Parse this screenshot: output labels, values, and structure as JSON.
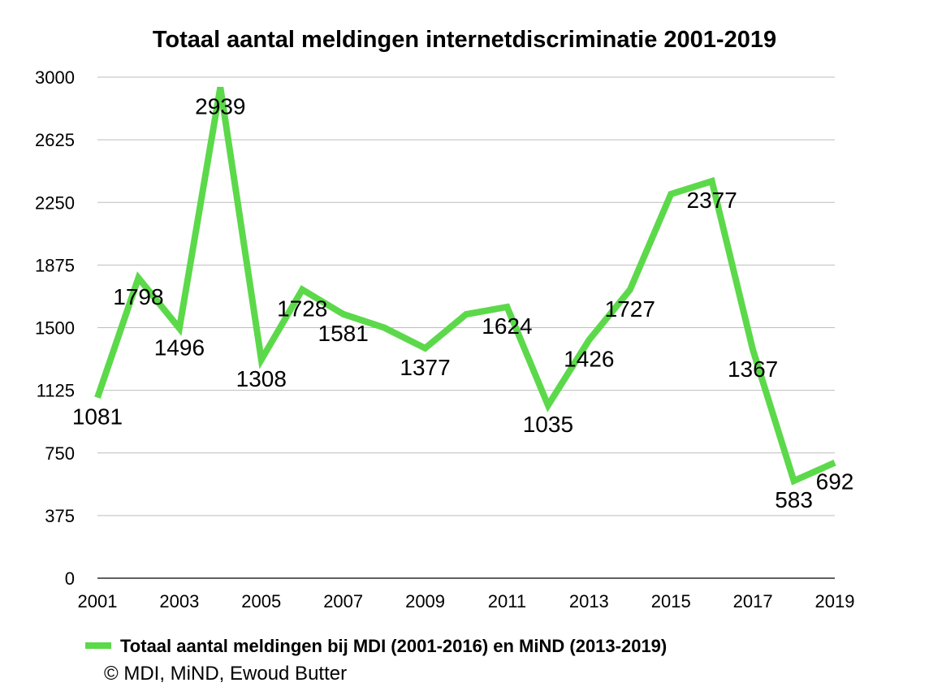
{
  "chart_data": {
    "type": "line",
    "title": "Totaal aantal meldingen internetdiscriminatie 2001-2019",
    "xlabel": "",
    "ylabel": "",
    "x": [
      2001,
      2002,
      2003,
      2004,
      2005,
      2006,
      2007,
      2008,
      2009,
      2010,
      2011,
      2012,
      2013,
      2014,
      2015,
      2016,
      2017,
      2018,
      2019
    ],
    "x_tick_labels": [
      "2001",
      "2003",
      "2005",
      "2007",
      "2009",
      "2011",
      "2013",
      "2015",
      "2017",
      "2019"
    ],
    "ylim": [
      0,
      3000
    ],
    "y_ticks": [
      0,
      375,
      750,
      1125,
      1500,
      1875,
      2250,
      2625,
      3000
    ],
    "grid": true,
    "legend_position": "bottom",
    "series": [
      {
        "name": "Totaal aantal meldingen bij MDI (2001-2016) en MiND (2013-2019)",
        "color": "#5cd94a",
        "values": [
          1081,
          1798,
          1496,
          2939,
          1308,
          1728,
          1581,
          1500,
          1377,
          1580,
          1624,
          1035,
          1426,
          1727,
          2300,
          2377,
          1367,
          583,
          692
        ]
      }
    ],
    "data_labels": [
      {
        "x": 2001,
        "text": "1081"
      },
      {
        "x": 2002,
        "text": "1798"
      },
      {
        "x": 2003,
        "text": "1496"
      },
      {
        "x": 2004,
        "text": "2939"
      },
      {
        "x": 2005,
        "text": "1308"
      },
      {
        "x": 2006,
        "text": "1728"
      },
      {
        "x": 2007,
        "text": "1581"
      },
      {
        "x": 2009,
        "text": "1377"
      },
      {
        "x": 2011,
        "text": "1624"
      },
      {
        "x": 2012,
        "text": "1035"
      },
      {
        "x": 2013,
        "text": "1426"
      },
      {
        "x": 2014,
        "text": "1727"
      },
      {
        "x": 2016,
        "text": "2377"
      },
      {
        "x": 2017,
        "text": "1367"
      },
      {
        "x": 2018,
        "text": "583"
      },
      {
        "x": 2019,
        "text": "692"
      }
    ]
  },
  "legend": {
    "label": "Totaal aantal meldingen bij MDI (2001-2016) en MiND (2013-2019)"
  },
  "credit": "© MDI, MiND, Ewoud Butter"
}
